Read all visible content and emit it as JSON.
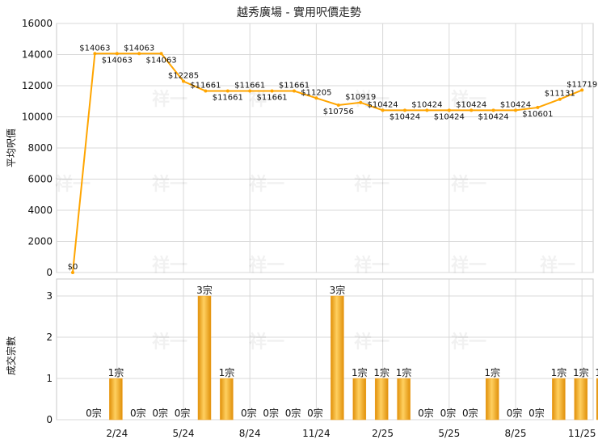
{
  "chart_data": [
    {
      "type": "line",
      "title": "越秀廣場 - 實用呎價走勢",
      "ylabel": "平均呎價",
      "ylim": [
        0,
        16000
      ],
      "yticks": [
        "0",
        "2000",
        "4000",
        "6000",
        "8000",
        "10000",
        "12000",
        "14000",
        "16000"
      ],
      "xticks": [
        {
          "label": "2/24",
          "index": 2
        },
        {
          "label": "5/24",
          "index": 5
        },
        {
          "label": "8/24",
          "index": 8
        },
        {
          "label": "11/24",
          "index": 11
        },
        {
          "label": "2/25",
          "index": 14
        },
        {
          "label": "5/25",
          "index": 17
        },
        {
          "label": "8/25",
          "index": 20
        },
        {
          "label": "11/25",
          "index": 23
        }
      ],
      "grid": true,
      "color": "#ffa500",
      "values": [
        0,
        14063,
        14063,
        14063,
        14063,
        12285,
        11661,
        11661,
        11661,
        11661,
        11661,
        11205,
        10756,
        10919,
        10424,
        10424,
        10424,
        10424,
        10424,
        10424,
        10424,
        10601,
        11131,
        11719
      ],
      "labels": [
        "$0",
        "$14063",
        "$14063",
        "$14063",
        "$14063",
        "$12285",
        "$11661",
        "$11661",
        "$11661",
        "$11661",
        "$11661",
        "$11205",
        "$10756",
        "$10919",
        "$10424",
        "$10424",
        "$10424",
        "$10424",
        "$10424",
        "$10424",
        "$10424",
        "$10601",
        "$11131",
        "$11719"
      ],
      "label_side": [
        "up",
        "up",
        "down",
        "up",
        "down",
        "up",
        "up",
        "down",
        "up",
        "down",
        "up",
        "up",
        "down",
        "up",
        "up",
        "down",
        "up",
        "down",
        "up",
        "down",
        "up",
        "down",
        "up",
        "up"
      ]
    },
    {
      "type": "bar",
      "ylabel": "成交宗數",
      "ylim": [
        0,
        3
      ],
      "yticks": [
        "0",
        "1",
        "2",
        "3"
      ],
      "grid": true,
      "color": "#f0a020",
      "values": [
        0,
        1,
        0,
        0,
        0,
        3,
        1,
        0,
        0,
        0,
        0,
        3,
        1,
        1,
        1,
        0,
        0,
        0,
        1,
        0,
        0,
        1,
        1,
        1
      ],
      "labels": [
        "0宗",
        "1宗",
        "0宗",
        "0宗",
        "0宗",
        "3宗",
        "1宗",
        "0宗",
        "0宗",
        "0宗",
        "0宗",
        "3宗",
        "1宗",
        "1宗",
        "1宗",
        "0宗",
        "0宗",
        "0宗",
        "1宗",
        "0宗",
        "0宗",
        "1宗",
        "1宗",
        "1宗"
      ]
    }
  ],
  "watermark": "祥一"
}
